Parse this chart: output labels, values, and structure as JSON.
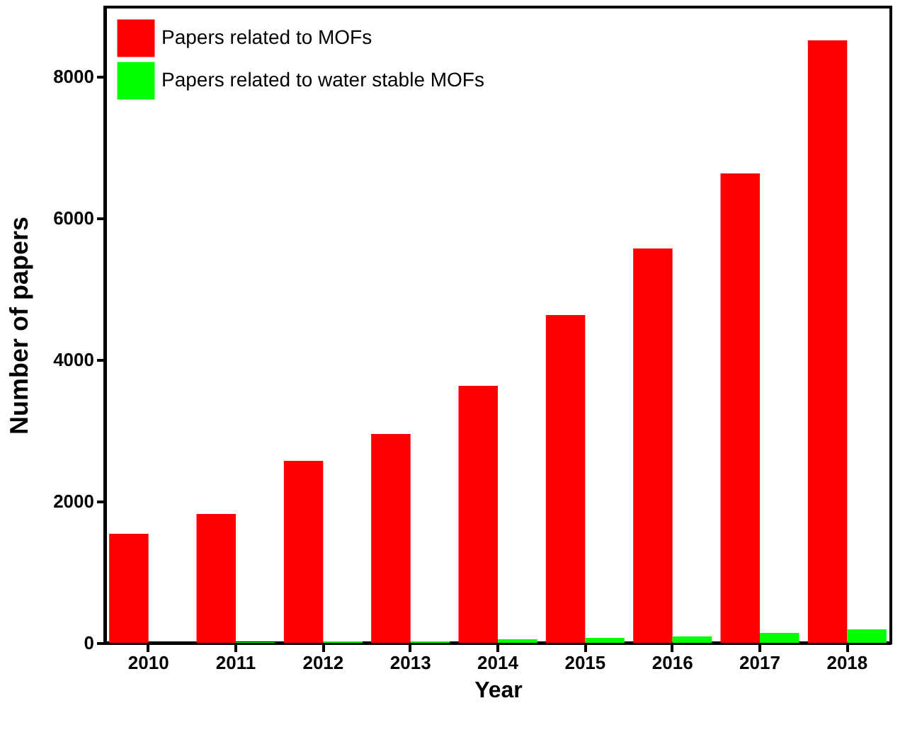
{
  "chart_data": {
    "type": "bar",
    "xlabel": "Year",
    "ylabel": "Number of papers",
    "categories": [
      "2010",
      "2011",
      "2012",
      "2013",
      "2014",
      "2015",
      "2016",
      "2017",
      "2018"
    ],
    "series": [
      {
        "name": "Papers related to MOFs",
        "color": "#ff0000",
        "values": [
          1540,
          1820,
          2570,
          2950,
          3630,
          4630,
          5570,
          6630,
          8510
        ]
      },
      {
        "name": "Papers related to water stable MOFs",
        "color": "#00ff00",
        "values": [
          0,
          10,
          20,
          20,
          50,
          70,
          90,
          140,
          190
        ]
      }
    ],
    "ylim": [
      0,
      8980
    ],
    "yticks": [
      0,
      2000,
      4000,
      6000,
      8000
    ],
    "grid": false,
    "legend": "top left"
  }
}
